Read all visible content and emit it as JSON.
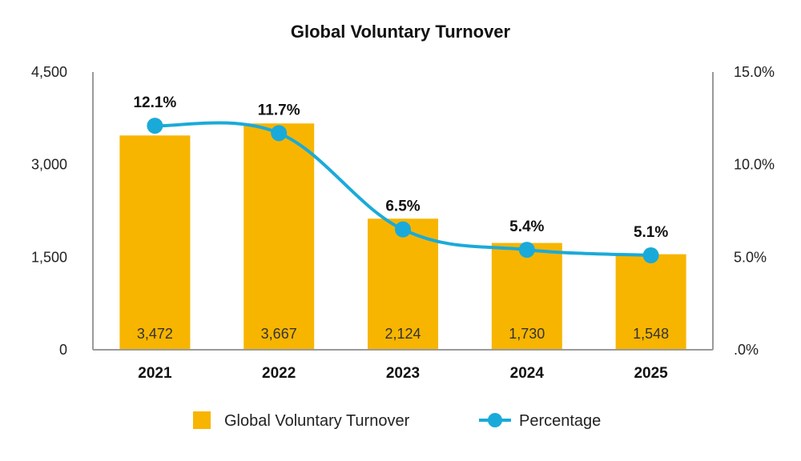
{
  "chart_data": {
    "type": "bar",
    "title": "Global Voluntary Turnover",
    "categories": [
      "2021",
      "2022",
      "2023",
      "2024",
      "2025"
    ],
    "series": [
      {
        "name": "Global Voluntary Turnover",
        "type": "bar",
        "axis": "left",
        "values": [
          3472,
          3667,
          2124,
          1730,
          1548
        ],
        "labels": [
          "3,472",
          "3,667",
          "2,124",
          "1,730",
          "1,548"
        ],
        "color": "#F7B500"
      },
      {
        "name": "Percentage",
        "type": "line",
        "axis": "right",
        "values": [
          12.1,
          11.7,
          6.5,
          5.4,
          5.1
        ],
        "labels": [
          "12.1%",
          "11.7%",
          "6.5%",
          "5.4%",
          "5.1%"
        ],
        "color": "#1AAAD9"
      }
    ],
    "y_left": {
      "ylim": [
        0,
        4500
      ],
      "ticks": [
        0,
        1500,
        3000,
        4500
      ],
      "tick_labels": [
        "0",
        "1,500",
        "3,000",
        "4,500"
      ]
    },
    "y_right": {
      "ylim": [
        0,
        15
      ],
      "ticks": [
        0,
        5,
        10,
        15
      ],
      "tick_labels": [
        ".0%",
        "5.0%",
        "10.0%",
        "15.0%"
      ]
    },
    "grid": false,
    "legend_position": "bottom"
  }
}
